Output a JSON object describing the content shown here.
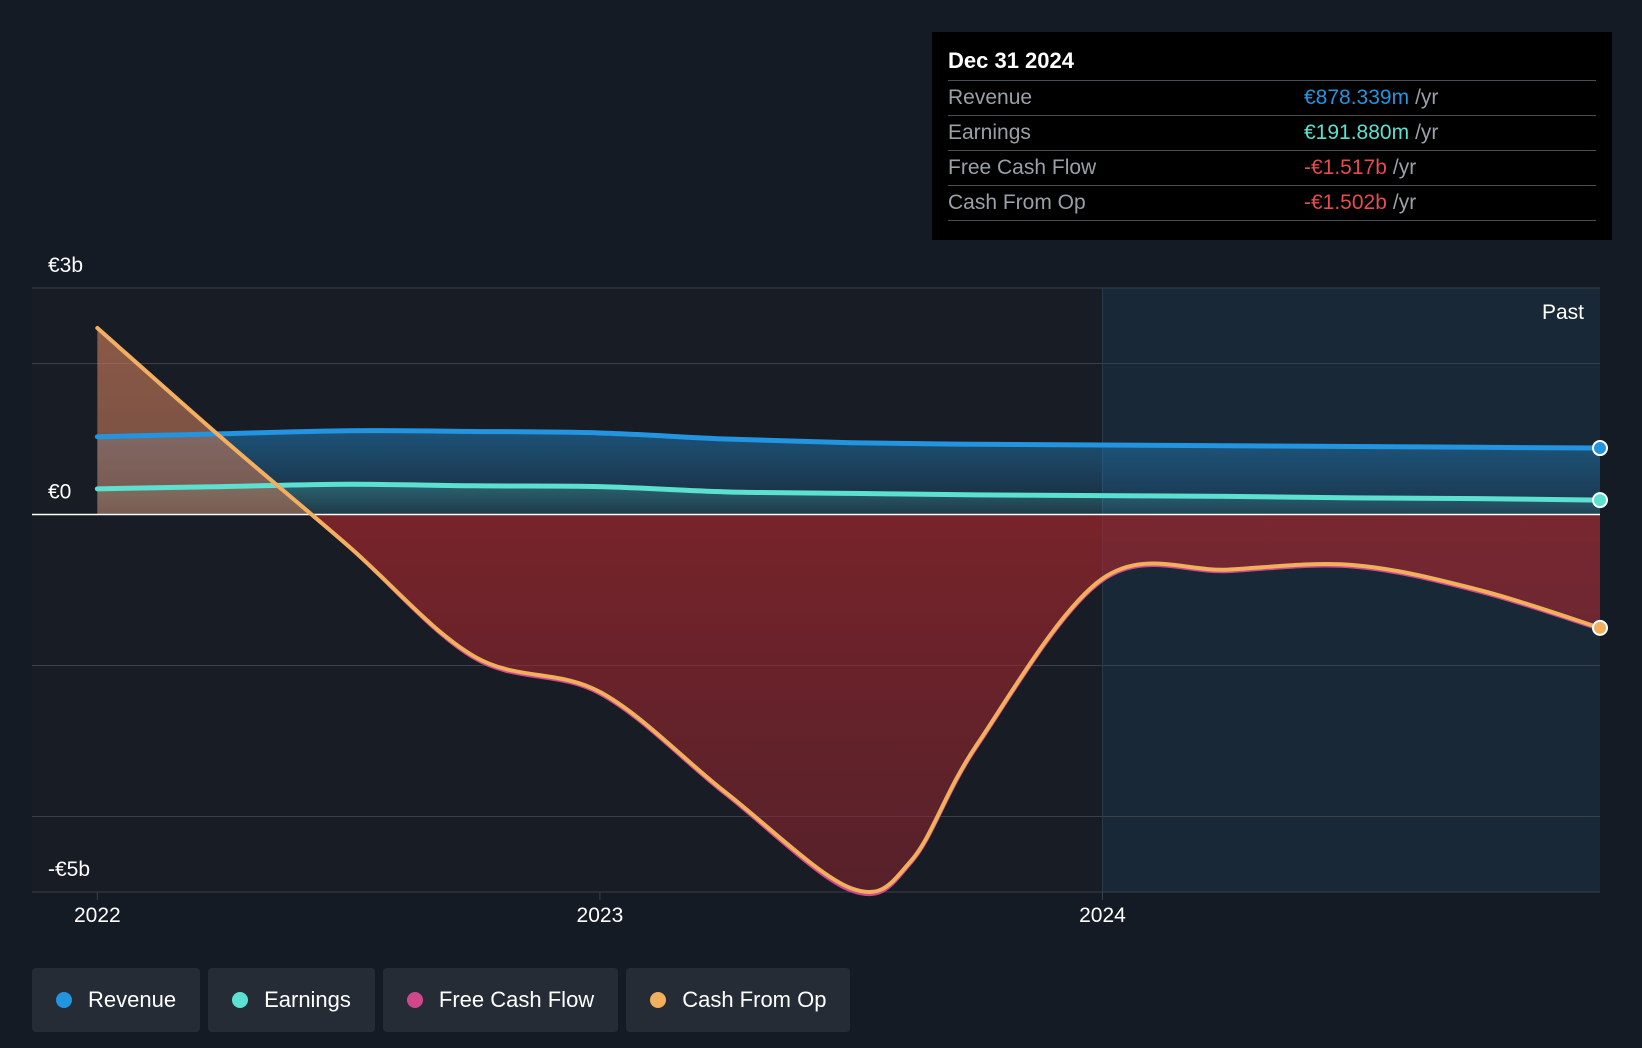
{
  "colors": {
    "background": "#151b24",
    "revenue": "#2394df",
    "earnings": "#5ce1d0",
    "free_cash_flow": "#d1478e",
    "cash_from_op": "#f0b05e",
    "negative": "#e64c4c"
  },
  "tooltip": {
    "date": "Dec 31 2024",
    "rows": [
      {
        "label": "Revenue",
        "value": "€878.339m",
        "unit": "/yr",
        "color": "#2394df"
      },
      {
        "label": "Earnings",
        "value": "€191.880m",
        "unit": "/yr",
        "color": "#5ce1d0"
      },
      {
        "label": "Free Cash Flow",
        "value": "-€1.517b",
        "unit": "/yr",
        "color": "#e64c4c"
      },
      {
        "label": "Cash From Op",
        "value": "-€1.502b",
        "unit": "/yr",
        "color": "#e64c4c"
      }
    ]
  },
  "legend": [
    {
      "label": "Revenue",
      "color": "#2394df"
    },
    {
      "label": "Earnings",
      "color": "#5ce1d0"
    },
    {
      "label": "Free Cash Flow",
      "color": "#d1478e"
    },
    {
      "label": "Cash From Op",
      "color": "#f0b05e"
    }
  ],
  "chart_data": {
    "type": "area",
    "title": "",
    "xlabel": "",
    "ylabel": "",
    "ylim": [
      -5,
      3
    ],
    "xlim": [
      2021.87,
      2024.99
    ],
    "y_tick_labels": [
      {
        "value": 3,
        "label": "€3b"
      },
      {
        "value": 0,
        "label": "€0"
      },
      {
        "value": -5,
        "label": "-€5b"
      }
    ],
    "gridlines": [
      3,
      2,
      0,
      -2,
      -4,
      -5
    ],
    "x_ticks": [
      {
        "value": 2022,
        "label": "2022"
      },
      {
        "value": 2023,
        "label": "2023"
      },
      {
        "value": 2024,
        "label": "2024"
      }
    ],
    "past_label": "Past",
    "past_start": 2024,
    "series": [
      {
        "name": "Revenue",
        "color": "#2394df",
        "x": [
          2022.0,
          2022.25,
          2022.5,
          2022.75,
          2023.0,
          2023.25,
          2023.5,
          2023.75,
          2024.0,
          2024.25,
          2024.5,
          2024.75,
          2024.99
        ],
        "values": [
          1.03,
          1.07,
          1.11,
          1.1,
          1.08,
          1.0,
          0.95,
          0.93,
          0.92,
          0.91,
          0.9,
          0.89,
          0.88
        ]
      },
      {
        "name": "Earnings",
        "color": "#5ce1d0",
        "x": [
          2022.0,
          2022.25,
          2022.5,
          2022.75,
          2023.0,
          2023.25,
          2023.5,
          2023.75,
          2024.0,
          2024.25,
          2024.5,
          2024.75,
          2024.99
        ],
        "values": [
          0.34,
          0.37,
          0.4,
          0.38,
          0.37,
          0.3,
          0.28,
          0.26,
          0.25,
          0.24,
          0.22,
          0.21,
          0.19
        ]
      },
      {
        "name": "Free Cash Flow",
        "color": "#d1478e",
        "x": [
          2022.0,
          2022.25,
          2022.5,
          2022.75,
          2023.0,
          2023.25,
          2023.5,
          2023.62,
          2023.75,
          2024.0,
          2024.25,
          2024.5,
          2024.75,
          2024.99
        ],
        "values": [
          2.47,
          1.0,
          -0.42,
          -1.9,
          -2.37,
          -3.7,
          -4.98,
          -4.6,
          -3.07,
          -0.87,
          -0.75,
          -0.69,
          -1.02,
          -1.517
        ]
      },
      {
        "name": "Cash From Op",
        "color": "#f0b05e",
        "x": [
          2022.0,
          2022.25,
          2022.5,
          2022.75,
          2023.0,
          2023.25,
          2023.5,
          2023.62,
          2023.75,
          2024.0,
          2024.25,
          2024.5,
          2024.75,
          2024.99
        ],
        "values": [
          2.47,
          1.0,
          -0.42,
          -1.88,
          -2.35,
          -3.68,
          -4.95,
          -4.58,
          -3.05,
          -0.85,
          -0.73,
          -0.67,
          -1.0,
          -1.502
        ]
      }
    ]
  }
}
